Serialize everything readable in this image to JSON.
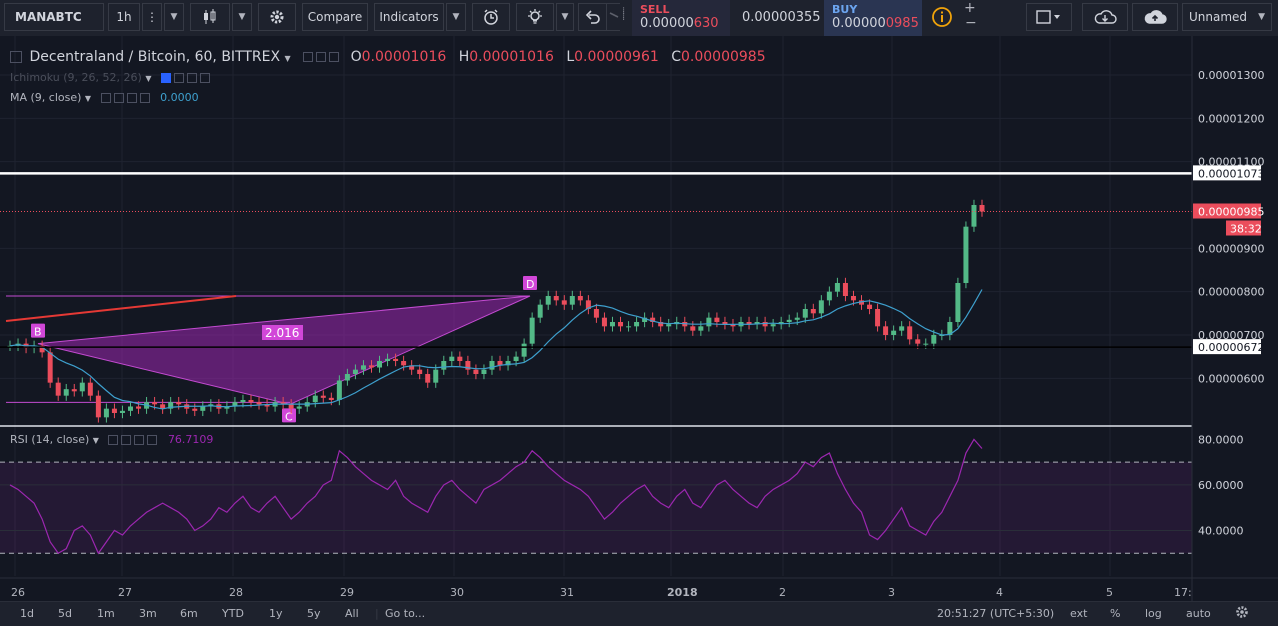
{
  "toolbar": {
    "symbol": "MANABTC",
    "interval": "1h",
    "compare_label": "Compare",
    "indicators_label": "Indicators",
    "sell_label": "SELL",
    "sell_price_prefix": "0.00000",
    "sell_price_suffix": "630",
    "spread": "0.00000355",
    "buy_label": "BUY",
    "buy_price_prefix": "0.00000",
    "buy_price_suffix": "0985",
    "layout_label": "Unnamed",
    "icons": [
      "bars-icon",
      "candles-icon",
      "settings-gear-icon",
      "alert-clock-icon",
      "bulb-icon",
      "undo-icon",
      "redo-icon",
      "info-icon",
      "plus-icon",
      "minus-icon",
      "fullscreen-icon",
      "cloud-down-icon",
      "cloud-up-icon"
    ]
  },
  "legend": {
    "title": "Decentraland / Bitcoin, 60, BITTREX",
    "o_label": "O",
    "o_value": "0.00001016",
    "h_label": "H",
    "h_value": "0.00001016",
    "l_label": "L",
    "l_value": "0.00000961",
    "c_label": "C",
    "c_value": "0.00000985",
    "ichimoku": "Ichimoku (9, 26, 52, 26)",
    "ma": "MA (9, close)",
    "ma_value": "0.0000",
    "rsi": "RSI (14, close)",
    "rsi_value": "76.7109"
  },
  "price_axis": {
    "ticks": [
      "0.00001300",
      "0.00001200",
      "0.00001100",
      "0.00000900",
      "0.00000800",
      "0.00000700",
      "0.00000600"
    ],
    "label_horizontal_line": "0.00001073",
    "label_last_price": "0.00000985",
    "label_countdown": "38:32",
    "label_support_line": "0.00000672"
  },
  "rsi_axis": {
    "ticks": [
      "80.0000",
      "60.0000",
      "40.0000"
    ]
  },
  "time_axis": {
    "ticks": [
      "26",
      "27",
      "28",
      "29",
      "30",
      "31",
      "2018",
      "2",
      "3",
      "4",
      "5",
      "17:"
    ]
  },
  "pattern": {
    "points": [
      "B",
      "C",
      "D"
    ],
    "ratio": "2.016"
  },
  "bottom_bar": {
    "ranges": [
      "1d",
      "5d",
      "1m",
      "3m",
      "6m",
      "YTD",
      "1y",
      "5y",
      "All"
    ],
    "goto": "Go to...",
    "clock": "20:51:27 (UTC+5:30)",
    "ext": "ext",
    "percent": "%",
    "log": "log",
    "auto": "auto"
  },
  "colors": {
    "background": "#131722",
    "up": "#53b987",
    "down": "#eb4d5c",
    "pattern": "#9c27b0",
    "rsi": "#9c27b0",
    "ma": "#3ea0ce"
  },
  "chart_data": {
    "type": "candlestick",
    "title": "Decentraland / Bitcoin, 60, BITTREX",
    "interval": "60",
    "x_ticks": [
      "26",
      "27",
      "28",
      "29",
      "30",
      "31",
      "2018",
      "2",
      "3",
      "4",
      "5"
    ],
    "ylim": [
      4.9e-06,
      1.39e-05
    ],
    "close_series": [
      6.75e-06,
      6.8e-06,
      6.7e-06,
      6.75e-06,
      6.6e-06,
      5.9e-06,
      5.6e-06,
      5.75e-06,
      5.7e-06,
      5.9e-06,
      5.6e-06,
      5.1e-06,
      5.3e-06,
      5.2e-06,
      5.25e-06,
      5.35e-06,
      5.3e-06,
      5.45e-06,
      5.4e-06,
      5.3e-06,
      5.45e-06,
      5.4e-06,
      5.3e-06,
      5.25e-06,
      5.35e-06,
      5.4e-06,
      5.3e-06,
      5.35e-06,
      5.45e-06,
      5.5e-06,
      5.45e-06,
      5.4e-06,
      5.35e-06,
      5.45e-06,
      5.4e-06,
      5.3e-06,
      5.35e-06,
      5.45e-06,
      5.6e-06,
      5.55e-06,
      5.5e-06,
      5.95e-06,
      6.1e-06,
      6.2e-06,
      6.3e-06,
      6.25e-06,
      6.4e-06,
      6.45e-06,
      6.4e-06,
      6.3e-06,
      6.2e-06,
      6.1e-06,
      5.9e-06,
      6.2e-06,
      6.4e-06,
      6.5e-06,
      6.4e-06,
      6.2e-06,
      6.1e-06,
      6.2e-06,
      6.4e-06,
      6.3e-06,
      6.4e-06,
      6.5e-06,
      6.8e-06,
      7.4e-06,
      7.7e-06,
      7.9e-06,
      7.8e-06,
      7.7e-06,
      7.9e-06,
      7.8e-06,
      7.6e-06,
      7.4e-06,
      7.2e-06,
      7.3e-06,
      7.2e-06,
      7.2e-06,
      7.3e-06,
      7.4e-06,
      7.3e-06,
      7.2e-06,
      7.25e-06,
      7.3e-06,
      7.2e-06,
      7.1e-06,
      7.2e-06,
      7.4e-06,
      7.3e-06,
      7.25e-06,
      7.2e-06,
      7.3e-06,
      7.25e-06,
      7.3e-06,
      7.2e-06,
      7.25e-06,
      7.3e-06,
      7.35e-06,
      7.4e-06,
      7.6e-06,
      7.5e-06,
      7.8e-06,
      8e-06,
      8.2e-06,
      7.9e-06,
      7.8e-06,
      7.7e-06,
      7.6e-06,
      7.2e-06,
      7e-06,
      7.1e-06,
      7.2e-06,
      6.9e-06,
      6.8e-06,
      6.8e-06,
      7e-06,
      7e-06,
      7.3e-06,
      8.2e-06,
      9.5e-06,
      1e-05,
      9.85e-06
    ],
    "ma_period": 9,
    "levels": {
      "resistance": 1.073e-05,
      "last": 9.85e-06,
      "support": 6.72e-06
    },
    "pattern": {
      "B": 6.8e-06,
      "C": 5.4e-06,
      "D": 7.9e-06,
      "ratio": "2.016"
    },
    "rsi": {
      "period": 14,
      "upper": 70,
      "lower": 30,
      "ylim": [
        20,
        85
      ],
      "values": [
        60,
        58,
        55,
        52,
        45,
        35,
        30,
        32,
        40,
        42,
        38,
        30,
        35,
        40,
        38,
        42,
        45,
        48,
        50,
        52,
        50,
        48,
        45,
        40,
        42,
        45,
        50,
        48,
        52,
        55,
        50,
        48,
        52,
        55,
        50,
        45,
        48,
        52,
        55,
        60,
        62,
        75,
        72,
        68,
        65,
        62,
        60,
        58,
        62,
        55,
        52,
        50,
        48,
        55,
        60,
        62,
        58,
        55,
        52,
        58,
        60,
        62,
        65,
        68,
        70,
        75,
        72,
        68,
        65,
        62,
        60,
        58,
        55,
        50,
        45,
        48,
        52,
        55,
        58,
        60,
        55,
        52,
        50,
        55,
        58,
        52,
        50,
        55,
        60,
        62,
        58,
        55,
        52,
        50,
        55,
        58,
        60,
        62,
        65,
        70,
        68,
        72,
        74,
        65,
        58,
        52,
        48,
        38,
        36,
        40,
        45,
        50,
        42,
        40,
        38,
        44,
        48,
        55,
        62,
        74,
        80,
        76
      ]
    }
  }
}
